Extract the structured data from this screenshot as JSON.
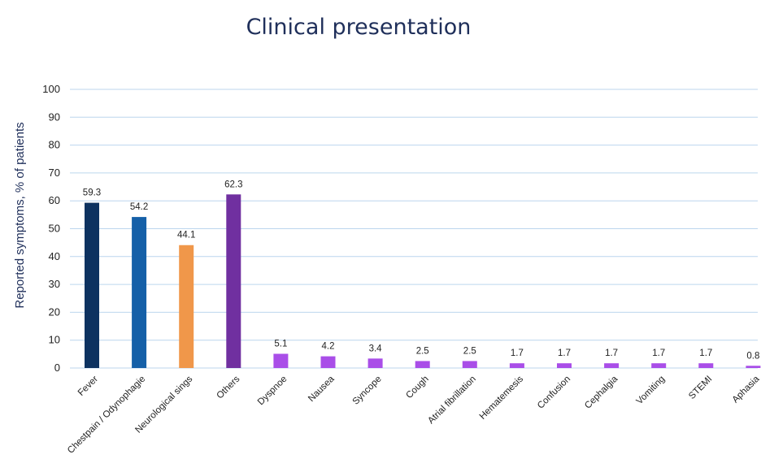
{
  "chart_data": {
    "type": "bar",
    "title": "Clinical presentation",
    "ylabel": "Reported symptoms, % of patients",
    "xlabel": "",
    "ylim": [
      0,
      100
    ],
    "yticks": [
      0,
      10,
      20,
      30,
      40,
      50,
      60,
      70,
      80,
      90,
      100
    ],
    "grid": true,
    "categories": [
      "Fever",
      "Chestpain / Odynophagie",
      "Neurological sings",
      "Others",
      "Dyspnoe",
      "Nausea",
      "Syncope",
      "Cough",
      "Atrial fibrillation",
      "Hematemesis",
      "Confusion",
      "Cephalgia",
      "Vomiting",
      "STEMI",
      "Aphasia"
    ],
    "values": [
      59.3,
      54.2,
      44.1,
      62.3,
      5.1,
      4.2,
      3.4,
      2.5,
      2.5,
      1.7,
      1.7,
      1.7,
      1.7,
      1.7,
      0.8
    ],
    "data_labels": [
      "59.3",
      "54.2",
      "44.1",
      "62.3",
      "5.1",
      "4.2",
      "3.4",
      "2.5",
      "2.5",
      "1.7",
      "1.7",
      "1.7",
      "1.7",
      "1.7",
      "0.8"
    ],
    "colors": [
      "#0d3260",
      "#1560a8",
      "#f0974a",
      "#7030a0",
      "#a94ee8",
      "#a94ee8",
      "#a94ee8",
      "#a94ee8",
      "#a94ee8",
      "#a94ee8",
      "#a94ee8",
      "#a94ee8",
      "#a94ee8",
      "#a94ee8",
      "#a94ee8"
    ],
    "gridline_color": "#bcd6ee",
    "title_color": "#1f2f5a"
  }
}
